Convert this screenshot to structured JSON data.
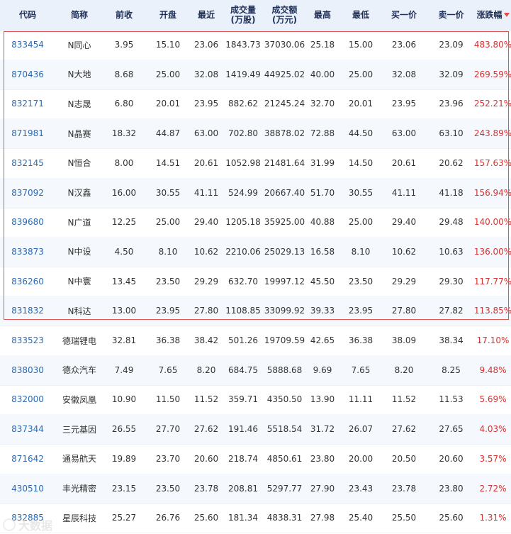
{
  "headers": {
    "code": "代码",
    "name": "简称",
    "prev": "前收",
    "open": "开盘",
    "last": "最近",
    "volume_line1": "成交量",
    "volume_line2": "(万股)",
    "amount_line1": "成交额",
    "amount_line2": "(万元)",
    "high": "最高",
    "low": "最低",
    "buy1": "买一价",
    "sell1": "卖一价",
    "change": "涨跌幅"
  },
  "rows": [
    {
      "code": "833454",
      "name": "N同心",
      "prev": "3.95",
      "open": "15.10",
      "last": "23.06",
      "volume": "1843.73",
      "amount": "37030.06",
      "high": "25.18",
      "low": "15.00",
      "buy1": "23.06",
      "sell1": "23.09",
      "change": "483.80%"
    },
    {
      "code": "870436",
      "name": "N大地",
      "prev": "8.68",
      "open": "25.00",
      "last": "32.08",
      "volume": "1419.49",
      "amount": "44925.02",
      "high": "40.00",
      "low": "25.00",
      "buy1": "32.08",
      "sell1": "32.09",
      "change": "269.59%"
    },
    {
      "code": "832171",
      "name": "N志晟",
      "prev": "6.80",
      "open": "20.01",
      "last": "23.95",
      "volume": "882.62",
      "amount": "21245.24",
      "high": "32.70",
      "low": "20.01",
      "buy1": "23.95",
      "sell1": "23.96",
      "change": "252.21%"
    },
    {
      "code": "871981",
      "name": "N晶赛",
      "prev": "18.32",
      "open": "44.87",
      "last": "63.00",
      "volume": "702.80",
      "amount": "38878.02",
      "high": "72.88",
      "low": "44.50",
      "buy1": "63.00",
      "sell1": "63.10",
      "change": "243.89%"
    },
    {
      "code": "832145",
      "name": "N恒合",
      "prev": "8.00",
      "open": "14.51",
      "last": "20.61",
      "volume": "1052.98",
      "amount": "21481.64",
      "high": "31.99",
      "low": "14.50",
      "buy1": "20.61",
      "sell1": "20.62",
      "change": "157.63%"
    },
    {
      "code": "837092",
      "name": "N汉鑫",
      "prev": "16.00",
      "open": "30.55",
      "last": "41.11",
      "volume": "524.99",
      "amount": "20667.40",
      "high": "51.70",
      "low": "30.55",
      "buy1": "41.11",
      "sell1": "41.18",
      "change": "156.94%"
    },
    {
      "code": "839680",
      "name": "N广道",
      "prev": "12.25",
      "open": "25.00",
      "last": "29.40",
      "volume": "1205.18",
      "amount": "35925.00",
      "high": "40.88",
      "low": "25.00",
      "buy1": "29.40",
      "sell1": "29.48",
      "change": "140.00%"
    },
    {
      "code": "833873",
      "name": "N中设",
      "prev": "4.50",
      "open": "8.10",
      "last": "10.62",
      "volume": "2210.06",
      "amount": "25029.13",
      "high": "16.58",
      "low": "8.10",
      "buy1": "10.62",
      "sell1": "10.63",
      "change": "136.00%"
    },
    {
      "code": "836260",
      "name": "N中寰",
      "prev": "13.45",
      "open": "23.50",
      "last": "29.29",
      "volume": "632.70",
      "amount": "19997.12",
      "high": "45.50",
      "low": "23.50",
      "buy1": "29.29",
      "sell1": "29.30",
      "change": "117.77%"
    },
    {
      "code": "831832",
      "name": "N科达",
      "prev": "13.00",
      "open": "23.95",
      "last": "27.80",
      "volume": "1108.85",
      "amount": "33099.92",
      "high": "39.33",
      "low": "23.95",
      "buy1": "27.80",
      "sell1": "27.82",
      "change": "113.85%"
    },
    {
      "code": "833523",
      "name": "德瑞锂电",
      "prev": "32.81",
      "open": "36.38",
      "last": "38.42",
      "volume": "501.26",
      "amount": "19709.59",
      "high": "42.65",
      "low": "36.38",
      "buy1": "38.09",
      "sell1": "38.34",
      "change": "17.10%"
    },
    {
      "code": "838030",
      "name": "德众汽车",
      "prev": "7.49",
      "open": "7.65",
      "last": "8.20",
      "volume": "684.75",
      "amount": "5888.68",
      "high": "9.69",
      "low": "7.65",
      "buy1": "8.20",
      "sell1": "8.25",
      "change": "9.48%"
    },
    {
      "code": "832000",
      "name": "安徽凤凰",
      "prev": "10.90",
      "open": "11.50",
      "last": "11.52",
      "volume": "359.71",
      "amount": "4350.50",
      "high": "13.90",
      "low": "11.11",
      "buy1": "11.52",
      "sell1": "11.53",
      "change": "5.69%"
    },
    {
      "code": "837344",
      "name": "三元基因",
      "prev": "26.55",
      "open": "27.70",
      "last": "27.62",
      "volume": "191.46",
      "amount": "5518.54",
      "high": "31.72",
      "low": "26.07",
      "buy1": "27.62",
      "sell1": "27.65",
      "change": "4.03%"
    },
    {
      "code": "871642",
      "name": "通易航天",
      "prev": "19.89",
      "open": "23.70",
      "last": "20.60",
      "volume": "218.74",
      "amount": "4850.61",
      "high": "23.80",
      "low": "20.00",
      "buy1": "20.50",
      "sell1": "20.60",
      "change": "3.57%"
    },
    {
      "code": "430510",
      "name": "丰光精密",
      "prev": "23.15",
      "open": "23.50",
      "last": "23.78",
      "volume": "208.81",
      "amount": "5297.77",
      "high": "27.90",
      "low": "23.43",
      "buy1": "23.78",
      "sell1": "23.80",
      "change": "2.72%"
    },
    {
      "code": "832885",
      "name": "星辰科技",
      "prev": "25.27",
      "open": "26.76",
      "last": "25.60",
      "volume": "181.34",
      "amount": "4838.31",
      "high": "27.98",
      "low": "25.40",
      "buy1": "25.50",
      "sell1": "25.60",
      "change": "1.31%"
    }
  ],
  "watermark": {
    "text": "大数据",
    "icon": "circle-watermark-icon"
  },
  "colors": {
    "header_bg": "#eaf1fb",
    "code": "#2b6ab3",
    "change": "#d93030",
    "highlight_border": "#e25454"
  }
}
